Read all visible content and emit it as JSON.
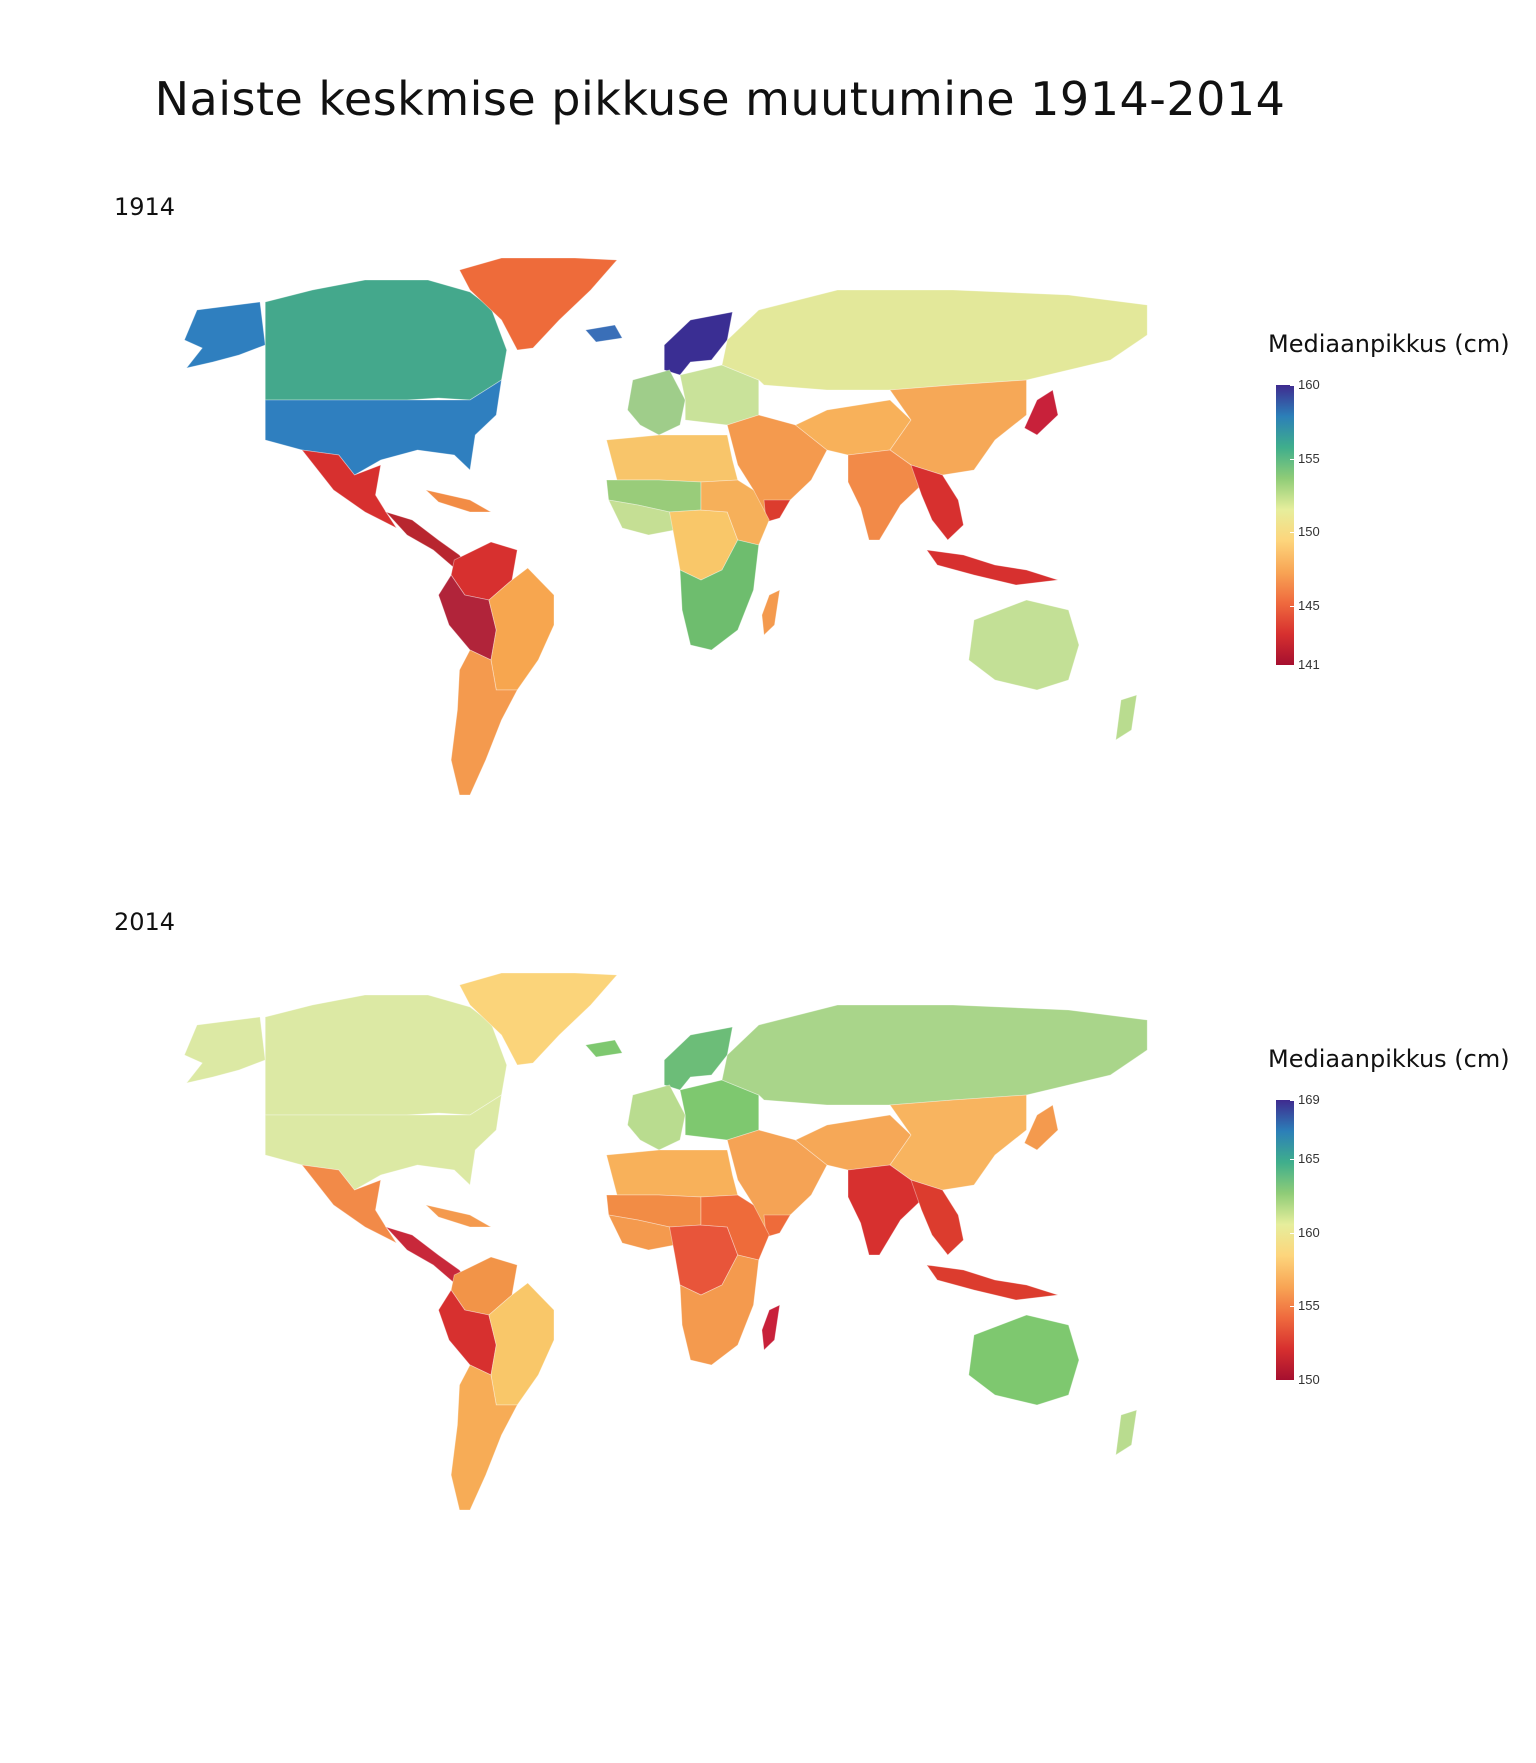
{
  "title": "Naiste keskmise pikkuse muutumine 1914-2014",
  "maps": [
    {
      "year": "1914",
      "legend": {
        "title": "Mediaanpikkus (cm)",
        "min": 141,
        "max": 160,
        "ticks": [
          "160",
          "155",
          "150",
          "145",
          "141"
        ],
        "tick_values": [
          160,
          155,
          150,
          145,
          141
        ]
      },
      "regions": {
        "alaska": "#2f7fbf",
        "canada": "#44a88c",
        "usa": "#2f7fbf",
        "greenland": "#ee6b3a",
        "mexico": "#d7302f",
        "central_america": "#b8262f",
        "caribbean": "#f28c45",
        "south_america_north": "#d7302f",
        "peru_bolivia": "#b1243a",
        "brazil": "#f7a64f",
        "southern_cone": "#f49a4e",
        "scandinavia": "#3a2e93",
        "iceland": "#3a6fb8",
        "west_europe": "#9fcd8a",
        "east_europe": "#c9e29a",
        "russia": "#e3e89a",
        "middle_east": "#f49a4e",
        "yemen": "#dc3c2e",
        "north_africa": "#f8c56a",
        "sahel": "#99cc7a",
        "west_africa": "#c5df94",
        "central_africa": "#f9c769",
        "east_africa": "#f6b05a",
        "southern_africa": "#6ebd6e",
        "madagascar": "#f49a4e",
        "central_asia": "#f8b15a",
        "china": "#f6a857",
        "india": "#f28a48",
        "southeast_asia": "#d7302f",
        "japan": "#c8213a",
        "indonesia": "#d7302f",
        "australia": "#c3e096",
        "new_zealand": "#b9dc8f"
      }
    },
    {
      "year": "2014",
      "legend": {
        "title": "Mediaanpikkus (cm)",
        "min": 150,
        "max": 169,
        "ticks": [
          "169",
          "165",
          "160",
          "155",
          "150"
        ],
        "tick_values": [
          169,
          165,
          160,
          155,
          150
        ]
      },
      "regions": {
        "alaska": "#dce9a4",
        "canada": "#dce9a4",
        "usa": "#dce9a4",
        "greenland": "#fbd47a",
        "mexico": "#f28a48",
        "central_america": "#c8283a",
        "caribbean": "#f49a4e",
        "south_america_north": "#f29448",
        "peru_bolivia": "#d7302f",
        "brazil": "#f9c769",
        "southern_cone": "#f7ac56",
        "scandinavia": "#6cbd78",
        "iceland": "#7ec86f",
        "west_europe": "#b9dc8f",
        "east_europe": "#7ec86f",
        "russia": "#a9d58a",
        "middle_east": "#f5a355",
        "yemen": "#ee6b3a",
        "north_africa": "#f8b15a",
        "sahel": "#f28c45",
        "west_africa": "#f49a4e",
        "central_africa": "#e8553a",
        "east_africa": "#ee6b3a",
        "southern_africa": "#f49a4e",
        "madagascar": "#c8213a",
        "central_asia": "#f6a857",
        "china": "#f8b45f",
        "india": "#d7302f",
        "southeast_asia": "#dc3c2e",
        "japan": "#f49a4e",
        "indonesia": "#dc3c2e",
        "australia": "#7ec86f",
        "new_zealand": "#b9dc8f"
      }
    }
  ],
  "legend_colors": [
    "#3f2b8f",
    "#2c7fb8",
    "#3fae8c",
    "#8fcc77",
    "#e6ee9c",
    "#fdd57c",
    "#f8a555",
    "#ef6a3e",
    "#d7302f",
    "#a50f2f"
  ]
}
